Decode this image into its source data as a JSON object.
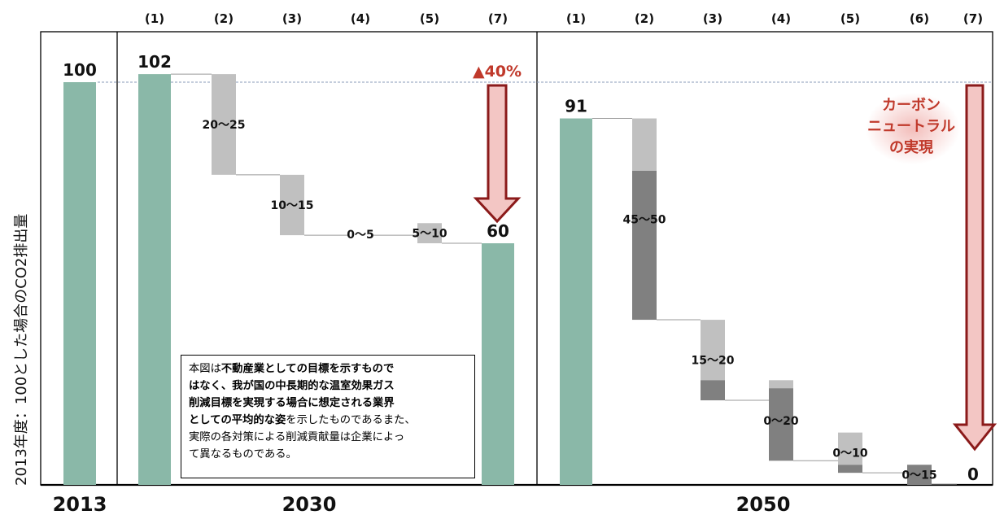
{
  "chart_data": {
    "type": "bar",
    "ylabel": "2013年度：100とした場合のCO2排出量",
    "colors": {
      "base": "#8ab8a8",
      "light": "#c0c0c0",
      "dark": "#808080",
      "arrow_fill": "#f3c6c4",
      "arrow_stroke": "#8b1a1a",
      "accent_text": "#c0392b"
    },
    "groups": [
      {
        "label": "2013"
      },
      {
        "label": "2030",
        "ticks": [
          "(1)",
          "(2)",
          "(3)",
          "(4)",
          "(5)",
          "(7)"
        ]
      },
      {
        "label": "2050",
        "ticks": [
          "(1)",
          "(2)",
          "(3)",
          "(4)",
          "(5)",
          "(6)",
          "(7)"
        ]
      }
    ],
    "bars": [
      {
        "group": "2013",
        "kind": "total",
        "value": 100,
        "label": "100"
      },
      {
        "group": "2030",
        "tick": "(1)",
        "kind": "total",
        "value": 102,
        "label": "102"
      },
      {
        "group": "2030",
        "tick": "(2)",
        "kind": "reduction",
        "start": 102,
        "end": 77,
        "label": "20〜25"
      },
      {
        "group": "2030",
        "tick": "(3)",
        "kind": "reduction",
        "start": 77,
        "end": 62,
        "label": "10〜15"
      },
      {
        "group": "2030",
        "tick": "(4)",
        "kind": "reduction",
        "start": 62,
        "end": 62,
        "label": "0〜5"
      },
      {
        "group": "2030",
        "tick": "(5)",
        "kind": "reduction",
        "start": 65,
        "end": 60,
        "label": "5〜10"
      },
      {
        "group": "2030",
        "tick": "(7)",
        "kind": "total",
        "value": 60,
        "label": "60"
      },
      {
        "group": "2050",
        "tick": "(1)",
        "kind": "total",
        "value": 91,
        "label": "91"
      },
      {
        "group": "2050",
        "tick": "(2)",
        "kind": "reduction",
        "start": 91,
        "end": 41,
        "dark_from": 78,
        "label": "45〜50"
      },
      {
        "group": "2050",
        "tick": "(3)",
        "kind": "reduction",
        "start": 41,
        "end": 21,
        "dark_from": 26,
        "label": "15〜20"
      },
      {
        "group": "2050",
        "tick": "(4)",
        "kind": "reduction",
        "start": 26,
        "end": 6,
        "dark_from": 24,
        "label": "0〜20"
      },
      {
        "group": "2050",
        "tick": "(5)",
        "kind": "reduction",
        "start": 13,
        "end": 3,
        "dark_from": 5,
        "label": "0〜10"
      },
      {
        "group": "2050",
        "tick": "(6)",
        "kind": "reduction",
        "start": 5,
        "end": -10,
        "dark_from": 5,
        "label": "0〜15"
      },
      {
        "group": "2050",
        "tick": "(7)",
        "kind": "total",
        "value": 0,
        "label": "0"
      }
    ],
    "annotations": {
      "arrow_2030": "▲40%",
      "arrow_2050": [
        "カーボン",
        "ニュートラル",
        "の実現"
      ]
    }
  },
  "note": {
    "s1": "本図は",
    "b1": "不動産業としての目標を示すもので",
    "b2": "はなく、我が国の中長期的な温室効果ガス",
    "b3": "削減目標を実現する場合に想定される業界",
    "b4": "としての平均的な姿",
    "s2": "を示したものであるまた、",
    "s3": "実際の各対策による削減貢献量は企業によっ",
    "s4": "て異なるものである。"
  }
}
